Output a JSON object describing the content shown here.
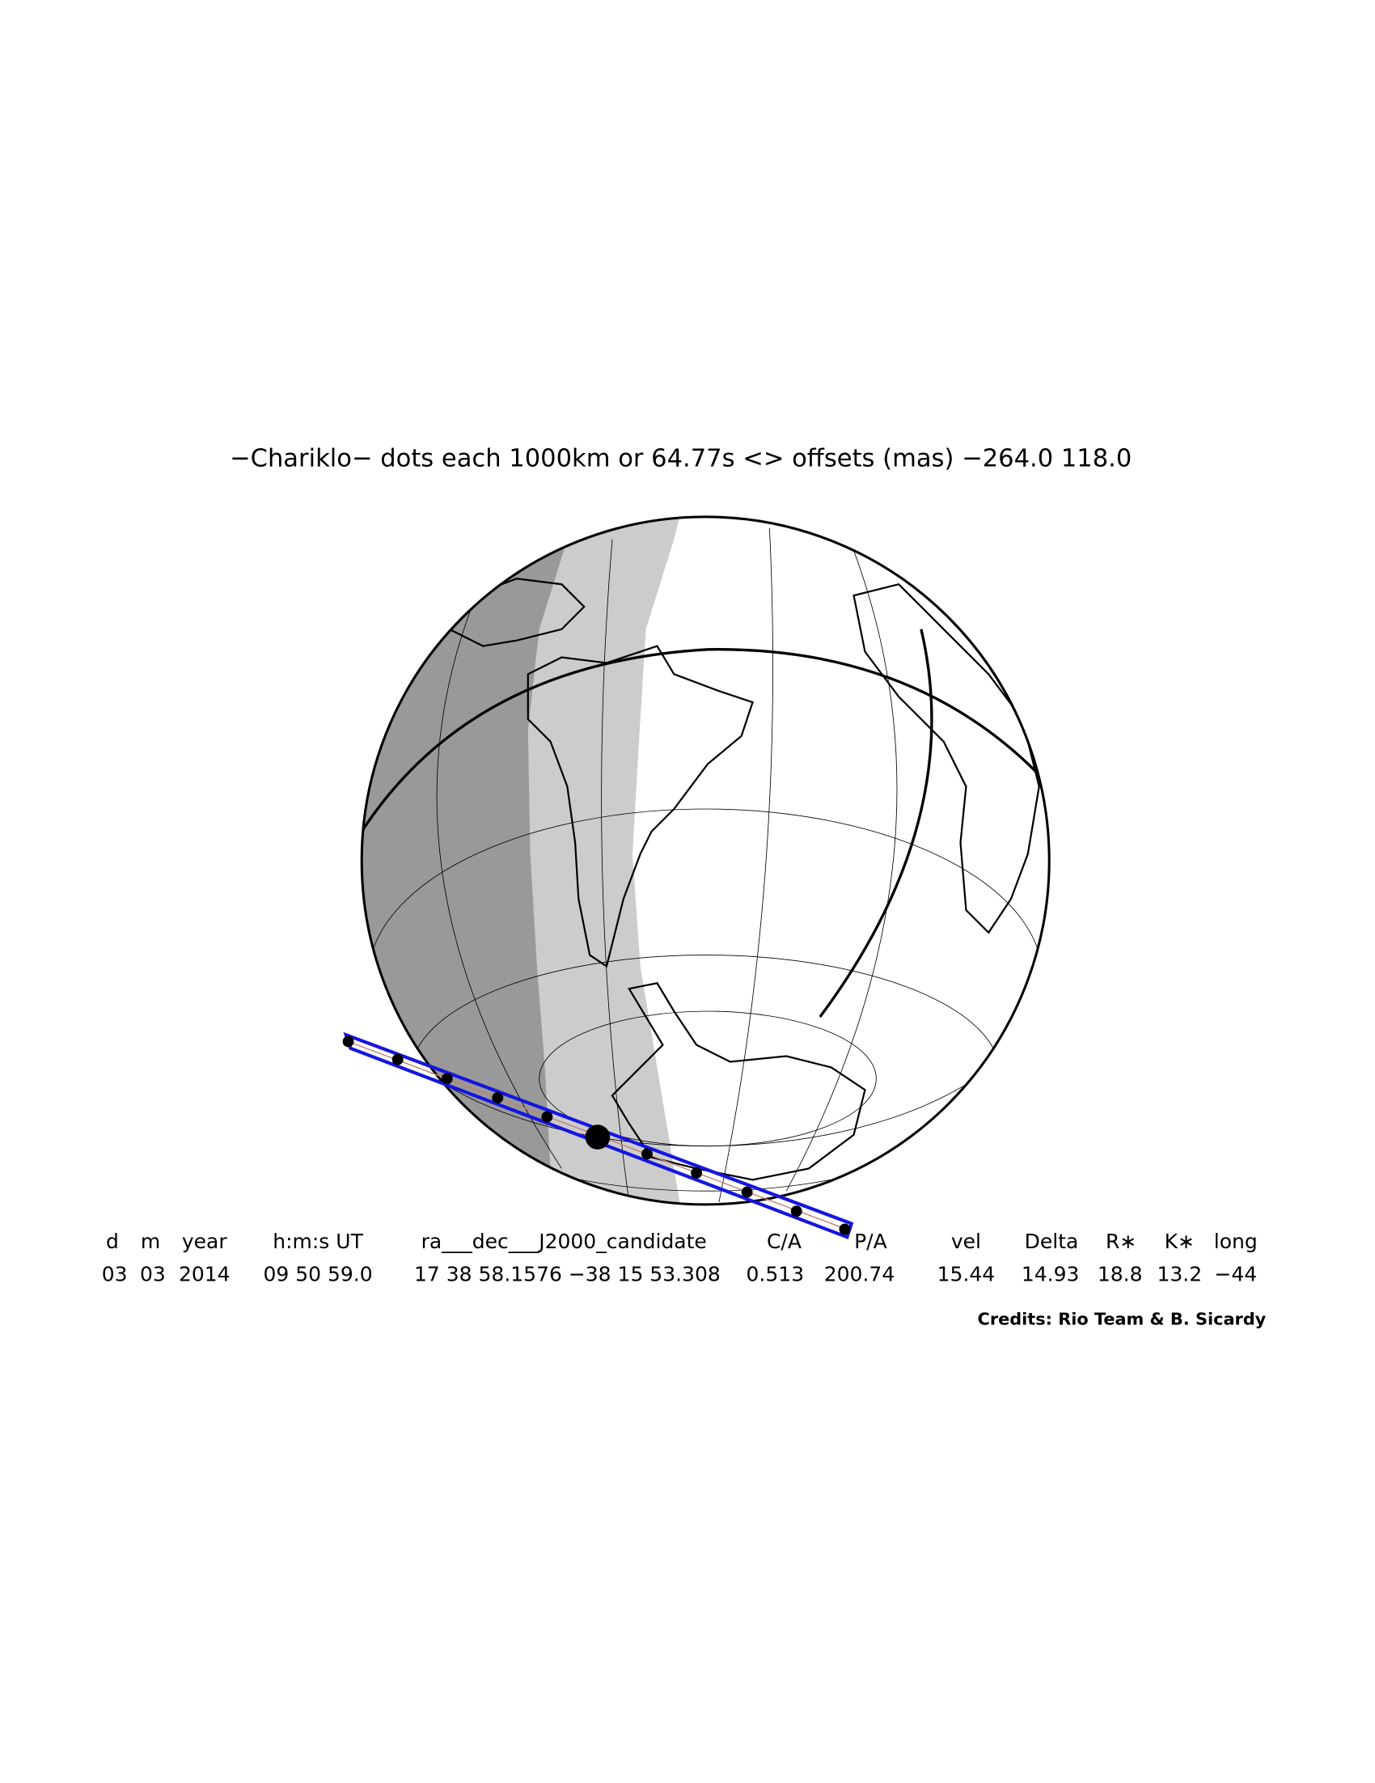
{
  "header": {
    "title": "−Chariklo− dots each 1000km or 64.77s <> offsets (mas) −264.0  118.0"
  },
  "table": {
    "columns": [
      "d",
      "m",
      "year",
      "h:m:s UT",
      "ra___dec___J2000_candidate",
      "C/A",
      "P/A",
      "vel",
      "Delta",
      "R∗",
      "K∗",
      "long"
    ],
    "row": [
      "03",
      "03",
      "2014",
      "09 50 59.0",
      "17 38 58.1576 −38 15 53.308",
      "0.513",
      "200.74",
      "15.44",
      "14.93",
      "18.8",
      "13.2",
      "−44"
    ]
  },
  "credits": "Credits: Rio Team & B. Sicardy"
}
